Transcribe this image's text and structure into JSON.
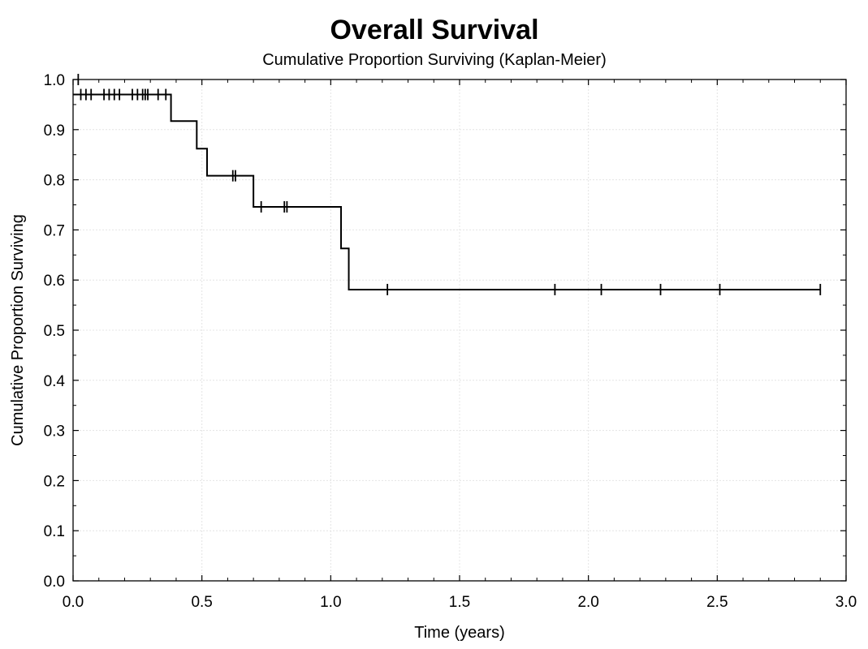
{
  "chart_data": {
    "type": "line",
    "title": "Overall Survival",
    "subtitle": "Cumulative Proportion Surviving (Kaplan-Meier)",
    "xlabel": "Time (years)",
    "ylabel": "Cumulative Proportion Surviving",
    "xlim": [
      0,
      3
    ],
    "ylim": [
      0,
      1
    ],
    "x_ticks": [
      "0.0",
      "0.5",
      "1.0",
      "1.5",
      "2.0",
      "2.5",
      "3.0"
    ],
    "y_ticks": [
      "0.0",
      "0.1",
      "0.2",
      "0.3",
      "0.4",
      "0.5",
      "0.6",
      "0.7",
      "0.8",
      "0.9",
      "1.0"
    ],
    "grid": true,
    "legend": "none",
    "series": [
      {
        "step_points": [
          {
            "x": 0.0,
            "y": 0.97
          },
          {
            "x": 0.38,
            "y": 0.917
          },
          {
            "x": 0.48,
            "y": 0.862
          },
          {
            "x": 0.52,
            "y": 0.808
          },
          {
            "x": 0.7,
            "y": 0.746
          },
          {
            "x": 1.04,
            "y": 0.663
          },
          {
            "x": 1.07,
            "y": 0.581
          },
          {
            "x": 2.9,
            "y": 0.581
          }
        ],
        "censored": [
          {
            "x": 0.02,
            "y": 1.0
          },
          {
            "x": 0.03,
            "y": 0.97
          },
          {
            "x": 0.05,
            "y": 0.97
          },
          {
            "x": 0.07,
            "y": 0.97
          },
          {
            "x": 0.12,
            "y": 0.97
          },
          {
            "x": 0.14,
            "y": 0.97
          },
          {
            "x": 0.16,
            "y": 0.97
          },
          {
            "x": 0.18,
            "y": 0.97
          },
          {
            "x": 0.23,
            "y": 0.97
          },
          {
            "x": 0.25,
            "y": 0.97
          },
          {
            "x": 0.27,
            "y": 0.97
          },
          {
            "x": 0.28,
            "y": 0.97
          },
          {
            "x": 0.29,
            "y": 0.97
          },
          {
            "x": 0.33,
            "y": 0.97
          },
          {
            "x": 0.36,
            "y": 0.97
          },
          {
            "x": 0.62,
            "y": 0.808
          },
          {
            "x": 0.63,
            "y": 0.808
          },
          {
            "x": 0.73,
            "y": 0.746
          },
          {
            "x": 0.82,
            "y": 0.746
          },
          {
            "x": 0.83,
            "y": 0.746
          },
          {
            "x": 1.22,
            "y": 0.581
          },
          {
            "x": 1.87,
            "y": 0.581
          },
          {
            "x": 2.05,
            "y": 0.581
          },
          {
            "x": 2.28,
            "y": 0.581
          },
          {
            "x": 2.51,
            "y": 0.581
          },
          {
            "x": 2.9,
            "y": 0.581
          }
        ]
      }
    ]
  }
}
